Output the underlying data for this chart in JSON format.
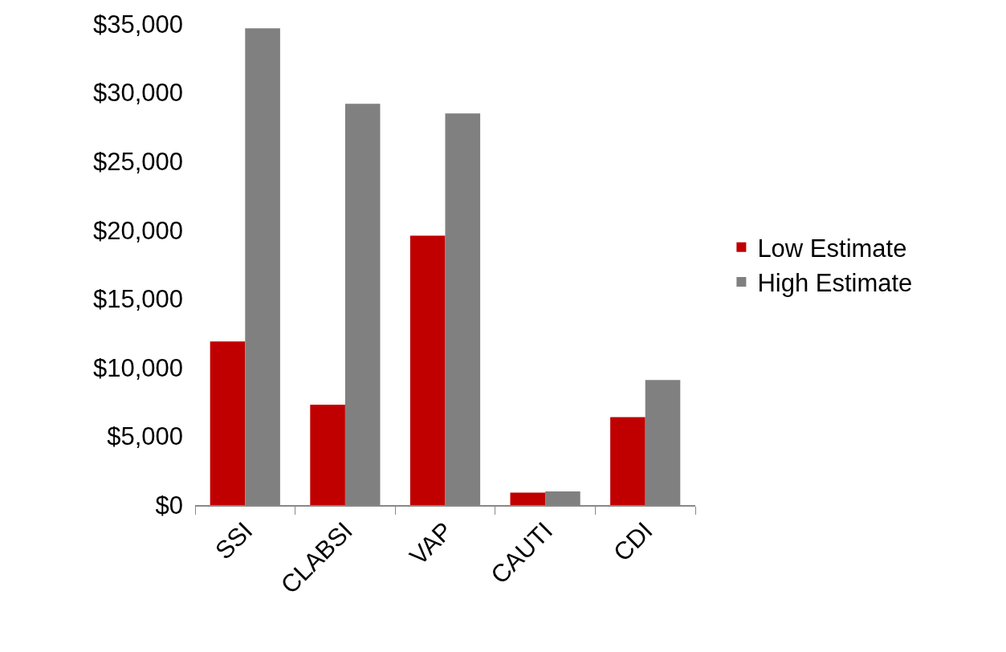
{
  "chart_data": {
    "type": "bar",
    "categories": [
      "SSI",
      "CLABSI",
      "VAP",
      "CAUTI",
      "CDI"
    ],
    "series": [
      {
        "name": "Low Estimate",
        "color": "#c00000",
        "values": [
          11900,
          7300,
          19600,
          900,
          6400
        ]
      },
      {
        "name": "High Estimate",
        "color": "#808080",
        "values": [
          34700,
          29200,
          28500,
          1000,
          9100
        ]
      }
    ],
    "ylim": [
      0,
      35000
    ],
    "yticks": [
      {
        "value": 0,
        "label": "$0"
      },
      {
        "value": 5000,
        "label": "$5,000"
      },
      {
        "value": 10000,
        "label": "$10,000"
      },
      {
        "value": 15000,
        "label": "$15,000"
      },
      {
        "value": 20000,
        "label": "$20,000"
      },
      {
        "value": 25000,
        "label": "$25,000"
      },
      {
        "value": 30000,
        "label": "$30,000"
      },
      {
        "value": 35000,
        "label": "$35,000"
      }
    ],
    "grid": false,
    "legend": "right"
  }
}
